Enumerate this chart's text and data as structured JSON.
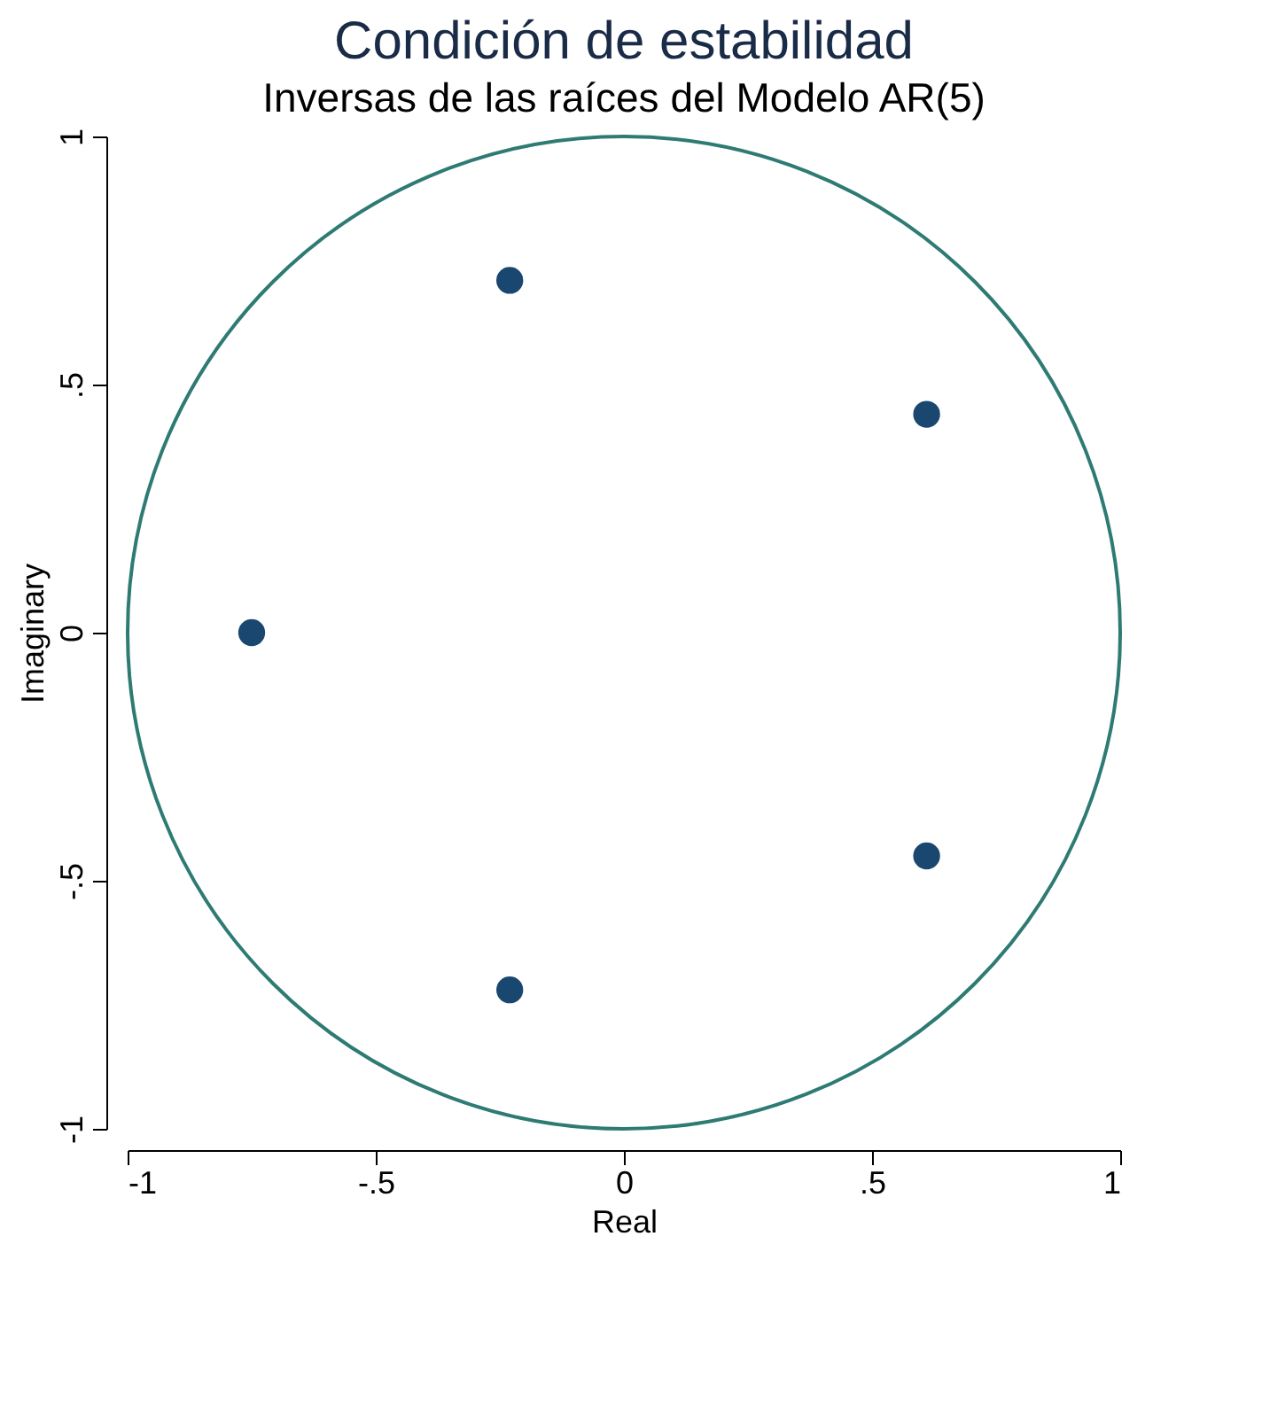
{
  "chart_data": {
    "type": "scatter",
    "title": "Condición de estabilidad",
    "subtitle": "Inversas de las raíces del Modelo AR(5)",
    "xlabel": "Real",
    "ylabel": "Imaginary",
    "xlim": [
      -1,
      1
    ],
    "ylim": [
      -1,
      1
    ],
    "xticks": [
      -1,
      {
        "value": -0.5,
        "label": "-.5"
      },
      0,
      {
        "value": 0.5,
        "label": ".5"
      },
      1
    ],
    "yticks": [
      -1,
      {
        "value": -0.5,
        "label": "-.5"
      },
      0,
      {
        "value": 0.5,
        "label": ".5"
      },
      1
    ],
    "grid": false,
    "series": [
      {
        "color": "#1a476f",
        "marker": "circle",
        "x": [
          -0.23,
          0.61,
          -0.75,
          0.61,
          -0.23
        ],
        "values": [
          0.71,
          0.44,
          0,
          -0.45,
          -0.72
        ]
      }
    ]
  }
}
